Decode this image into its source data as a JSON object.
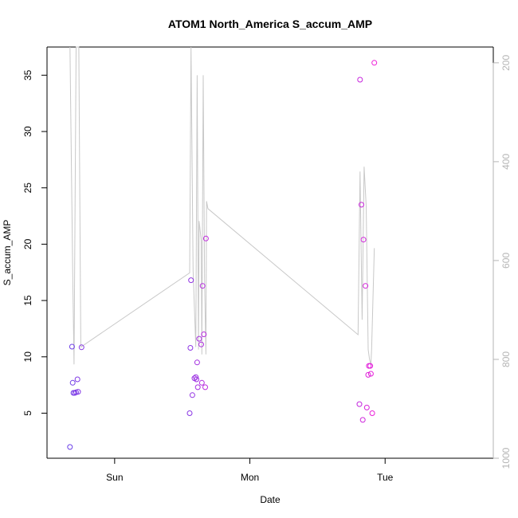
{
  "chart_data": {
    "type": "scatter",
    "title": "ATOM1 North_America S_accum_AMP",
    "xlabel": "Date",
    "ylabel": "S_accum_AMP",
    "x_ticks": [
      "Sun",
      "Mon",
      "Tue"
    ],
    "x_tick_positions_days": [
      0,
      1,
      2
    ],
    "xlim_days": [
      -0.5,
      2.8
    ],
    "ylim": [
      1.0,
      37.5
    ],
    "y_ticks": [
      5,
      10,
      15,
      20,
      25,
      30,
      35
    ],
    "y2_ticks": [
      200,
      400,
      600,
      800,
      1000
    ],
    "y2_lim": [
      1000,
      168
    ],
    "grid": false,
    "colors": {
      "axis": "#000000",
      "right_axis": "#b5b5b5",
      "line": "#c8c8c8",
      "point_start": "#6a3fe8",
      "point_end": "#ee1cd8"
    },
    "points": [
      {
        "x": -0.33,
        "y": 2.0
      },
      {
        "x": -0.315,
        "y": 10.9
      },
      {
        "x": -0.31,
        "y": 7.7
      },
      {
        "x": -0.305,
        "y": 6.8
      },
      {
        "x": -0.295,
        "y": 6.8
      },
      {
        "x": -0.285,
        "y": 6.85
      },
      {
        "x": -0.275,
        "y": 8.0
      },
      {
        "x": -0.27,
        "y": 6.9
      },
      {
        "x": -0.245,
        "y": 10.85
      },
      {
        "x": 0.555,
        "y": 5.0
      },
      {
        "x": 0.56,
        "y": 10.8
      },
      {
        "x": 0.565,
        "y": 16.8
      },
      {
        "x": 0.575,
        "y": 6.6
      },
      {
        "x": 0.59,
        "y": 8.1
      },
      {
        "x": 0.6,
        "y": 8.2
      },
      {
        "x": 0.605,
        "y": 8.0
      },
      {
        "x": 0.61,
        "y": 9.5
      },
      {
        "x": 0.615,
        "y": 7.3
      },
      {
        "x": 0.625,
        "y": 11.6
      },
      {
        "x": 0.64,
        "y": 11.1
      },
      {
        "x": 0.645,
        "y": 7.7
      },
      {
        "x": 0.65,
        "y": 16.3
      },
      {
        "x": 0.66,
        "y": 12.0
      },
      {
        "x": 0.67,
        "y": 7.3
      },
      {
        "x": 0.675,
        "y": 20.5
      },
      {
        "x": 1.81,
        "y": 5.8
      },
      {
        "x": 1.815,
        "y": 34.6
      },
      {
        "x": 1.825,
        "y": 23.5
      },
      {
        "x": 1.835,
        "y": 4.4
      },
      {
        "x": 1.84,
        "y": 20.4
      },
      {
        "x": 1.855,
        "y": 16.3
      },
      {
        "x": 1.865,
        "y": 5.5
      },
      {
        "x": 1.875,
        "y": 8.4
      },
      {
        "x": 1.88,
        "y": 9.2
      },
      {
        "x": 1.89,
        "y": 9.2
      },
      {
        "x": 1.895,
        "y": 8.5
      },
      {
        "x": 1.905,
        "y": 5.0
      },
      {
        "x": 1.92,
        "y": 36.1
      }
    ],
    "line_y2": [
      {
        "x": -0.33,
        "y2": 168
      },
      {
        "x": -0.31,
        "y2": 620
      },
      {
        "x": -0.3,
        "y2": 810
      },
      {
        "x": -0.285,
        "y2": 168
      },
      {
        "x": -0.275,
        "y2": 168
      },
      {
        "x": -0.265,
        "y2": 168
      },
      {
        "x": -0.25,
        "y2": 775
      },
      {
        "x": 0.555,
        "y2": 625
      },
      {
        "x": 0.565,
        "y2": 168
      },
      {
        "x": 0.58,
        "y2": 620
      },
      {
        "x": 0.6,
        "y2": 775
      },
      {
        "x": 0.61,
        "y2": 225
      },
      {
        "x": 0.62,
        "y2": 780
      },
      {
        "x": 0.625,
        "y2": 520
      },
      {
        "x": 0.64,
        "y2": 560
      },
      {
        "x": 0.645,
        "y2": 790
      },
      {
        "x": 0.655,
        "y2": 225
      },
      {
        "x": 0.665,
        "y2": 640
      },
      {
        "x": 0.675,
        "y2": 790
      },
      {
        "x": 0.68,
        "y2": 480
      },
      {
        "x": 0.69,
        "y2": 495
      },
      {
        "x": 1.8,
        "y2": 750
      },
      {
        "x": 1.815,
        "y2": 420
      },
      {
        "x": 1.83,
        "y2": 720
      },
      {
        "x": 1.845,
        "y2": 410
      },
      {
        "x": 1.86,
        "y2": 490
      },
      {
        "x": 1.875,
        "y2": 780
      },
      {
        "x": 1.885,
        "y2": 800
      },
      {
        "x": 1.895,
        "y2": 810
      },
      {
        "x": 1.9,
        "y2": 780
      },
      {
        "x": 1.92,
        "y2": 575
      }
    ]
  }
}
